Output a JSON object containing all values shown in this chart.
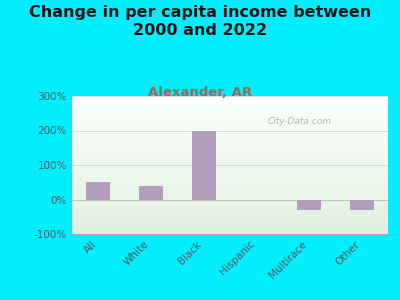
{
  "title": "Change in per capita income between\n2000 and 2022",
  "subtitle": "Alexander, AR",
  "categories": [
    "All",
    "White",
    "Black",
    "Hispanic",
    "Multirace",
    "Other"
  ],
  "values": [
    50,
    40,
    200,
    0,
    -30,
    -30
  ],
  "bar_color": "#b39dbd",
  "title_fontsize": 11.5,
  "subtitle_fontsize": 9.5,
  "subtitle_color": "#996655",
  "title_color": "#111111",
  "background_color": "#00eeff",
  "ylim": [
    -100,
    300
  ],
  "yticks": [
    -100,
    0,
    100,
    200,
    300
  ],
  "ytick_labels": [
    "-100%",
    "0%",
    "100%",
    "200%",
    "300%"
  ],
  "watermark": "City-Data.com",
  "tick_label_color": "#555555",
  "grid_color": "#cccccc",
  "spine_color": "#aaaaaa"
}
